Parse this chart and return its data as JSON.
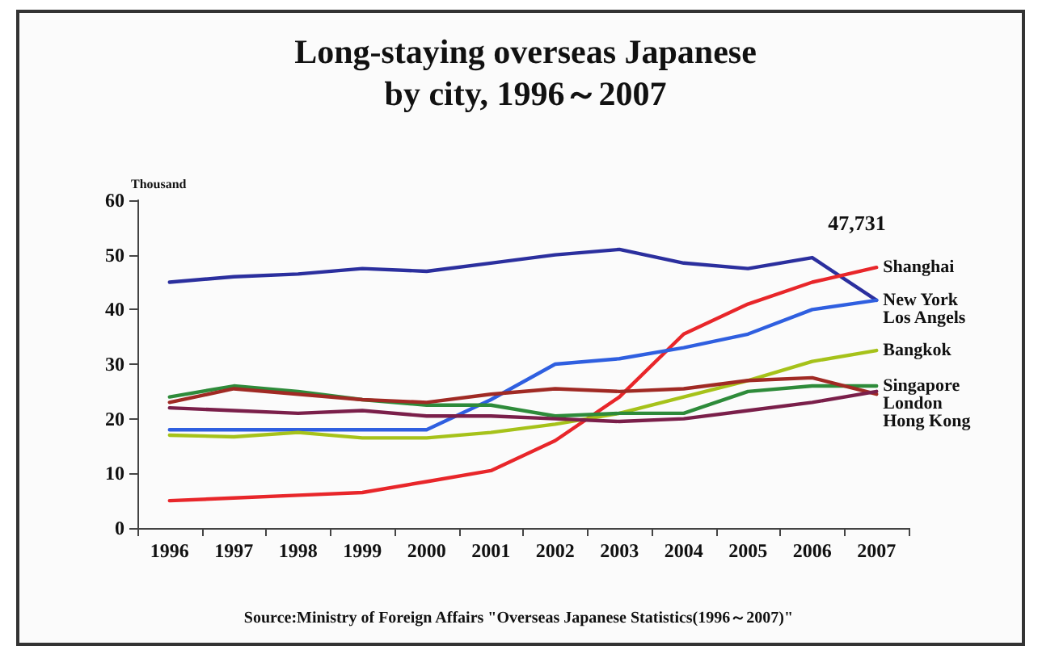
{
  "chart_data": {
    "type": "line",
    "title": "Long-staying overseas Japanese\nby city, 1996～2007",
    "ylabel": "Thousand",
    "categories": [
      "1996",
      "1997",
      "1998",
      "1999",
      "2000",
      "2001",
      "2002",
      "2003",
      "2004",
      "2005",
      "2006",
      "2007"
    ],
    "series": [
      {
        "name": "New York",
        "color": "#2b2f9e",
        "values": [
          45,
          46,
          46.5,
          47.5,
          47,
          48.5,
          50,
          51,
          48.5,
          47.5,
          49.5,
          41.7
        ]
      },
      {
        "name": "Shanghai",
        "color": "#e8262a",
        "values": [
          5,
          5.5,
          6,
          6.5,
          8.5,
          10.5,
          16,
          24,
          35.5,
          41,
          45,
          47.7
        ]
      },
      {
        "name": "Los Angels",
        "color": "#2f5fe0",
        "values": [
          18,
          18,
          18,
          18,
          18,
          23.5,
          30,
          31,
          33,
          35.5,
          40,
          41.7
        ]
      },
      {
        "name": "Bangkok",
        "color": "#a6c21a",
        "values": [
          17,
          16.7,
          17.5,
          16.5,
          16.5,
          17.5,
          19,
          21,
          24,
          27,
          30.5,
          32.5
        ]
      },
      {
        "name": "Singapore",
        "color": "#2e8b3a",
        "values": [
          24,
          26,
          25,
          23.5,
          22.5,
          22.5,
          20.5,
          21,
          21,
          25,
          26,
          26
        ]
      },
      {
        "name": "Hong Kong",
        "color": "#a02a24",
        "values": [
          23,
          25.5,
          24.5,
          23.5,
          23,
          24.5,
          25.5,
          25,
          25.5,
          27,
          27.5,
          24.5
        ]
      },
      {
        "name": "London",
        "color": "#7a1f4a",
        "values": [
          22,
          21.5,
          21,
          21.5,
          20.5,
          20.5,
          20,
          19.5,
          20,
          21.5,
          23,
          25
        ]
      }
    ],
    "ylim": [
      0,
      60
    ],
    "yticks": [
      0,
      10,
      20,
      30,
      40,
      50,
      60
    ],
    "grid": false,
    "legend": false,
    "marker": "none",
    "line_style": "solid",
    "annotations": [
      {
        "text": "47,731",
        "x": "2007",
        "y": 47.7
      },
      "Source:Ministry of Foreign Affairs \"Overseas Japanese Statistics(1996～2007)\""
    ]
  }
}
